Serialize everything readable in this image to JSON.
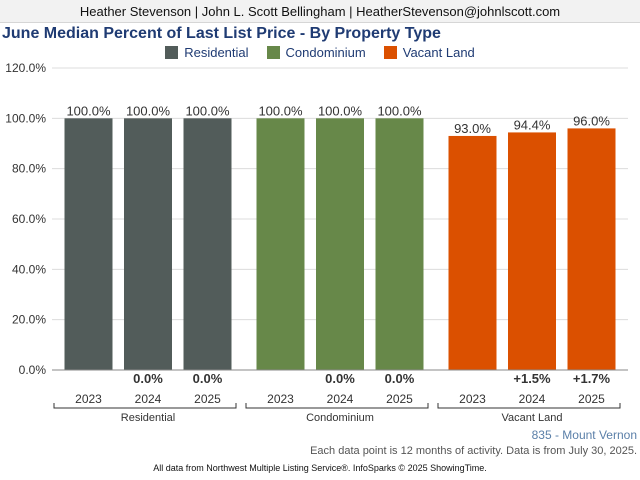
{
  "header": {
    "agent_line": "Heather Stevenson | John L. Scott Bellingham | HeatherStevenson@johnlscott.com"
  },
  "footer": {
    "region": "835 - Mount Vernon",
    "note": "Each data point is 12 months of activity. Data is from July 30, 2025.",
    "credit": "All data from Northwest Multiple Listing Service®. InfoSparks © 2025 ShowingTime."
  },
  "chart_data": {
    "type": "bar",
    "title": "June Median Percent of Last List Price - By Property Type",
    "ylim": [
      0,
      120
    ],
    "yticks": [
      "0.0%",
      "20.0%",
      "40.0%",
      "60.0%",
      "80.0%",
      "100.0%",
      "120.0%"
    ],
    "grid": true,
    "legend": "top",
    "categories": [
      "2023",
      "2024",
      "2025"
    ],
    "series": [
      {
        "name": "Residential",
        "color": "#525c5a",
        "values": [
          100.0,
          100.0,
          100.0
        ],
        "value_labels": [
          "100.0%",
          "100.0%",
          "100.0%"
        ],
        "change_labels": [
          "",
          "0.0%",
          "0.0%"
        ]
      },
      {
        "name": "Condominium",
        "color": "#678849",
        "values": [
          100.0,
          100.0,
          100.0
        ],
        "value_labels": [
          "100.0%",
          "100.0%",
          "100.0%"
        ],
        "change_labels": [
          "",
          "0.0%",
          "0.0%"
        ]
      },
      {
        "name": "Vacant Land",
        "color": "#db5000",
        "values": [
          93.0,
          94.4,
          96.0
        ],
        "value_labels": [
          "93.0%",
          "94.4%",
          "96.0%"
        ],
        "change_labels": [
          "",
          "+1.5%",
          "+1.7%"
        ]
      }
    ]
  }
}
